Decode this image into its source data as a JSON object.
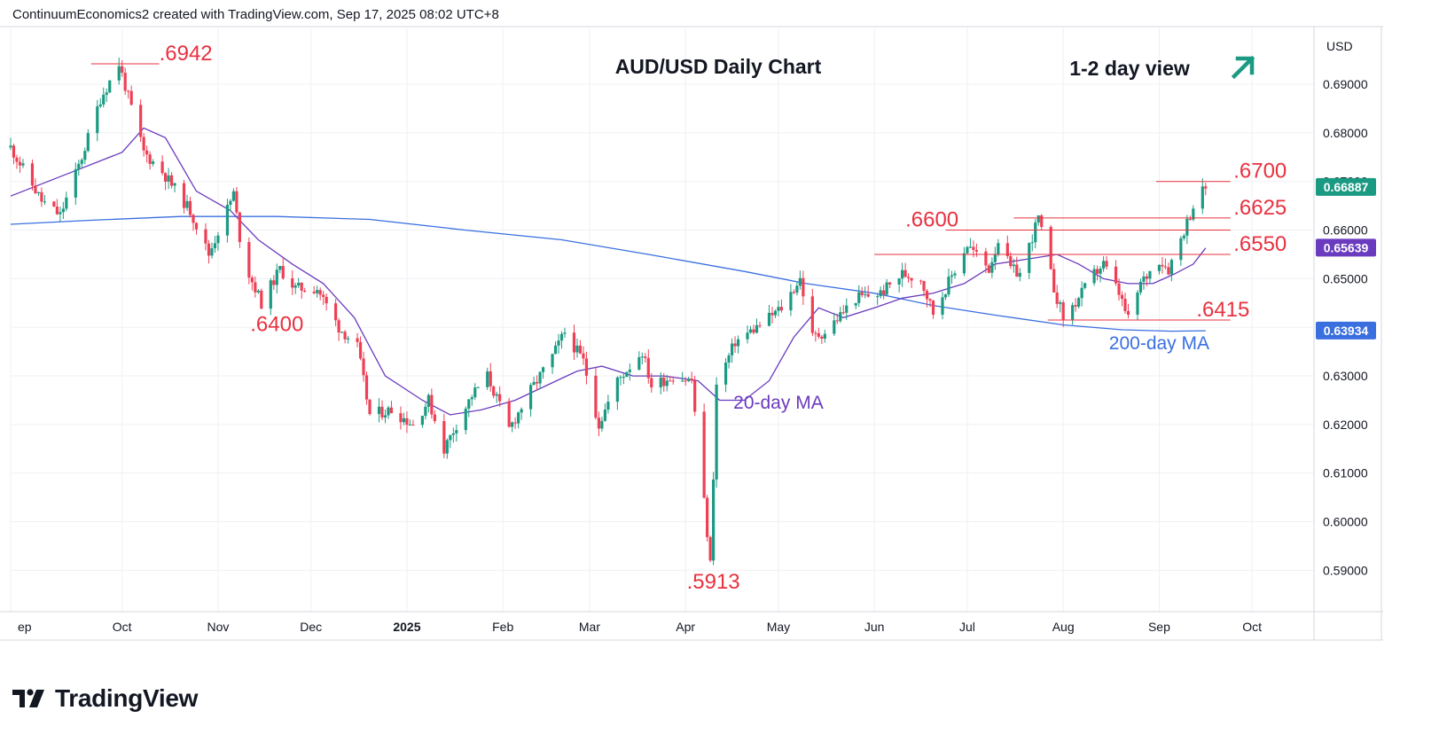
{
  "header": {
    "text": "ContinuumEconomics2 created with TradingView.com, Sep 17, 2025 08:02 UTC+8"
  },
  "logo": {
    "text": "TradingView"
  },
  "chart_data": {
    "type": "candlestick",
    "title": "AUD/USD Daily Chart",
    "subtitle": "1-2 day view",
    "currency": "USD",
    "ylim": [
      0.5815,
      0.7015
    ],
    "y_ticks": [
      "0.59000",
      "0.60000",
      "0.61000",
      "0.62000",
      "0.63000",
      "0.64000",
      "0.65000",
      "0.66000",
      "0.67000",
      "0.68000",
      "0.69000"
    ],
    "y_tick_values": [
      0.59,
      0.6,
      0.61,
      0.62,
      0.63,
      0.64,
      0.65,
      0.66,
      0.67,
      0.68,
      0.69
    ],
    "x_range": [
      "2024-08-26",
      "2025-10-21"
    ],
    "x_ticks": [
      {
        "date": "2024-08-26",
        "label": "ep"
      },
      {
        "date": "2024-10-01",
        "label": "Oct"
      },
      {
        "date": "2024-11-01",
        "label": "Nov"
      },
      {
        "date": "2024-12-01",
        "label": "Dec"
      },
      {
        "date": "2025-01-01",
        "label": "2025"
      },
      {
        "date": "2025-02-01",
        "label": "Feb"
      },
      {
        "date": "2025-03-01",
        "label": "Mar"
      },
      {
        "date": "2025-04-01",
        "label": "Apr"
      },
      {
        "date": "2025-05-01",
        "label": "May"
      },
      {
        "date": "2025-06-01",
        "label": "Jun"
      },
      {
        "date": "2025-07-01",
        "label": "Jul"
      },
      {
        "date": "2025-08-01",
        "label": "Aug"
      },
      {
        "date": "2025-09-01",
        "label": "Sep"
      },
      {
        "date": "2025-10-01",
        "label": "Oct"
      }
    ],
    "price_path": [
      [
        "2024-08-26",
        0.677
      ],
      [
        "2024-09-05",
        0.666
      ],
      [
        "2024-09-11",
        0.663
      ],
      [
        "2024-09-18",
        0.675
      ],
      [
        "2024-09-24",
        0.687
      ],
      [
        "2024-09-30",
        0.6942
      ],
      [
        "2024-10-08",
        0.676
      ],
      [
        "2024-10-14",
        0.672
      ],
      [
        "2024-10-23",
        0.664
      ],
      [
        "2024-10-29",
        0.655
      ],
      [
        "2024-11-06",
        0.6675
      ],
      [
        "2024-11-09",
        0.654
      ],
      [
        "2024-11-15",
        0.645
      ],
      [
        "2024-11-21",
        0.652
      ],
      [
        "2024-11-26",
        0.648
      ],
      [
        "2024-12-03",
        0.648
      ],
      [
        "2024-12-10",
        0.64
      ],
      [
        "2024-12-16",
        0.636
      ],
      [
        "2024-12-20",
        0.622
      ],
      [
        "2024-12-27",
        0.623
      ],
      [
        "2025-01-03",
        0.62
      ],
      [
        "2025-01-08",
        0.625
      ],
      [
        "2025-01-13",
        0.615
      ],
      [
        "2025-01-17",
        0.62
      ],
      [
        "2025-01-22",
        0.626
      ],
      [
        "2025-01-27",
        0.63
      ],
      [
        "2025-02-03",
        0.619
      ],
      [
        "2025-02-10",
        0.627
      ],
      [
        "2025-02-17",
        0.634
      ],
      [
        "2025-02-21",
        0.639
      ],
      [
        "2025-02-27",
        0.633
      ],
      [
        "2025-03-04",
        0.62
      ],
      [
        "2025-03-10",
        0.629
      ],
      [
        "2025-03-18",
        0.635
      ],
      [
        "2025-03-21",
        0.628
      ],
      [
        "2025-03-28",
        0.63
      ],
      [
        "2025-04-03",
        0.629
      ],
      [
        "2025-04-07",
        0.604
      ],
      [
        "2025-04-09",
        0.5913
      ],
      [
        "2025-04-11",
        0.628
      ],
      [
        "2025-04-17",
        0.637
      ],
      [
        "2025-04-24",
        0.64
      ],
      [
        "2025-05-02",
        0.644
      ],
      [
        "2025-05-08",
        0.65
      ],
      [
        "2025-05-12",
        0.638
      ],
      [
        "2025-05-16",
        0.639
      ],
      [
        "2025-05-26",
        0.646
      ],
      [
        "2025-06-03",
        0.647
      ],
      [
        "2025-06-10",
        0.651
      ],
      [
        "2025-06-16",
        0.65
      ],
      [
        "2025-06-20",
        0.643
      ],
      [
        "2025-06-24",
        0.648
      ],
      [
        "2025-07-01",
        0.657
      ],
      [
        "2025-07-08",
        0.652
      ],
      [
        "2025-07-11",
        0.658
      ],
      [
        "2025-07-15",
        0.652
      ],
      [
        "2025-07-18",
        0.651
      ],
      [
        "2025-07-24",
        0.6625
      ],
      [
        "2025-07-29",
        0.648
      ],
      [
        "2025-08-01",
        0.642
      ],
      [
        "2025-08-05",
        0.645
      ],
      [
        "2025-08-11",
        0.651
      ],
      [
        "2025-08-14",
        0.653
      ],
      [
        "2025-08-19",
        0.647
      ],
      [
        "2025-08-22",
        0.6415
      ],
      [
        "2025-08-26",
        0.649
      ],
      [
        "2025-09-01",
        0.654
      ],
      [
        "2025-09-04",
        0.652
      ],
      [
        "2025-09-09",
        0.66
      ],
      [
        "2025-09-12",
        0.665
      ],
      [
        "2025-09-16",
        0.669
      ]
    ],
    "ma20_path": [
      [
        "2024-08-26",
        0.667
      ],
      [
        "2024-09-15",
        0.672
      ],
      [
        "2024-10-01",
        0.676
      ],
      [
        "2024-10-08",
        0.681
      ],
      [
        "2024-10-15",
        0.679
      ],
      [
        "2024-10-25",
        0.668
      ],
      [
        "2024-11-05",
        0.664
      ],
      [
        "2024-11-14",
        0.658
      ],
      [
        "2024-11-25",
        0.653
      ],
      [
        "2024-12-05",
        0.649
      ],
      [
        "2024-12-15",
        0.642
      ],
      [
        "2024-12-25",
        0.63
      ],
      [
        "2025-01-06",
        0.625
      ],
      [
        "2025-01-15",
        0.622
      ],
      [
        "2025-01-25",
        0.623
      ],
      [
        "2025-02-05",
        0.625
      ],
      [
        "2025-02-15",
        0.628
      ],
      [
        "2025-02-25",
        0.631
      ],
      [
        "2025-03-05",
        0.632
      ],
      [
        "2025-03-15",
        0.63
      ],
      [
        "2025-03-25",
        0.63
      ],
      [
        "2025-04-05",
        0.629
      ],
      [
        "2025-04-12",
        0.625
      ],
      [
        "2025-04-20",
        0.625
      ],
      [
        "2025-04-28",
        0.629
      ],
      [
        "2025-05-06",
        0.638
      ],
      [
        "2025-05-14",
        0.644
      ],
      [
        "2025-05-22",
        0.642
      ],
      [
        "2025-06-01",
        0.644
      ],
      [
        "2025-06-10",
        0.646
      ],
      [
        "2025-06-20",
        0.647
      ],
      [
        "2025-06-30",
        0.649
      ],
      [
        "2025-07-10",
        0.653
      ],
      [
        "2025-07-20",
        0.654
      ],
      [
        "2025-07-30",
        0.655
      ],
      [
        "2025-08-06",
        0.653
      ],
      [
        "2025-08-14",
        0.65
      ],
      [
        "2025-08-22",
        0.649
      ],
      [
        "2025-08-30",
        0.649
      ],
      [
        "2025-09-06",
        0.651
      ],
      [
        "2025-09-12",
        0.653
      ],
      [
        "2025-09-16",
        0.6563
      ]
    ],
    "ma200_path": [
      [
        "2024-08-26",
        0.6612
      ],
      [
        "2024-09-20",
        0.662
      ],
      [
        "2024-10-20",
        0.6628
      ],
      [
        "2024-11-20",
        0.6628
      ],
      [
        "2024-12-20",
        0.6622
      ],
      [
        "2025-01-20",
        0.66
      ],
      [
        "2025-02-20",
        0.658
      ],
      [
        "2025-03-20",
        0.655
      ],
      [
        "2025-04-20",
        0.6515
      ],
      [
        "2025-05-10",
        0.649
      ],
      [
        "2025-06-01",
        0.647
      ],
      [
        "2025-06-20",
        0.6445
      ],
      [
        "2025-07-10",
        0.6425
      ],
      [
        "2025-08-01",
        0.6405
      ],
      [
        "2025-08-20",
        0.6395
      ],
      [
        "2025-09-05",
        0.6392
      ],
      [
        "2025-09-16",
        0.6393
      ]
    ],
    "series": [
      {
        "name": "20-day MA",
        "color": "#6a3bbf",
        "last_value": "0.65639"
      },
      {
        "name": "200-day MA",
        "color": "#3a6fe0",
        "last_value": "0.63934"
      }
    ],
    "last_price": "0.66887",
    "levels": [
      {
        "label": ".6942",
        "value": 0.6942,
        "from": "2024-09-21",
        "to": "2024-10-13",
        "label_at": "2024-10-13"
      },
      {
        "label": ".6700",
        "value": 0.67,
        "from": "2025-08-31",
        "to": "2025-09-24",
        "label_at": "2025-09-25"
      },
      {
        "label": ".6625",
        "value": 0.6625,
        "from": "2025-07-16",
        "to": "2025-09-24",
        "label_at": "2025-09-25"
      },
      {
        "label": ".6600",
        "value": 0.66,
        "from": "2025-06-24",
        "to": "2025-09-24",
        "label_at": "2025-06-11"
      },
      {
        "label": ".6550",
        "value": 0.655,
        "from": "2025-06-01",
        "to": "2025-09-24",
        "label_at": "2025-09-25"
      },
      {
        "label": ".6415",
        "value": 0.6415,
        "from": "2025-07-27",
        "to": "2025-09-24",
        "label_at": "2025-09-13"
      }
    ],
    "annotations": [
      {
        "label": ".6400",
        "date": "2024-11-20",
        "value": 0.6392
      },
      {
        "label": ".5913",
        "date": "2025-04-10",
        "value": 0.5862
      },
      {
        "label": "20-day MA",
        "date": "2025-05-01",
        "value": 0.6233
      },
      {
        "label": "200-day MA",
        "date": "2025-09-01",
        "value": 0.6355
      }
    ],
    "trend_view": "up",
    "colors": {
      "up": "#1b9a83",
      "down": "#ef3f55",
      "level": "#e8313f",
      "label": "#e8313f",
      "last_price_bg": "#1b9a83",
      "ma20_bg": "#6a3bbf",
      "ma200_bg": "#3a6fe0"
    },
    "grid": true
  }
}
